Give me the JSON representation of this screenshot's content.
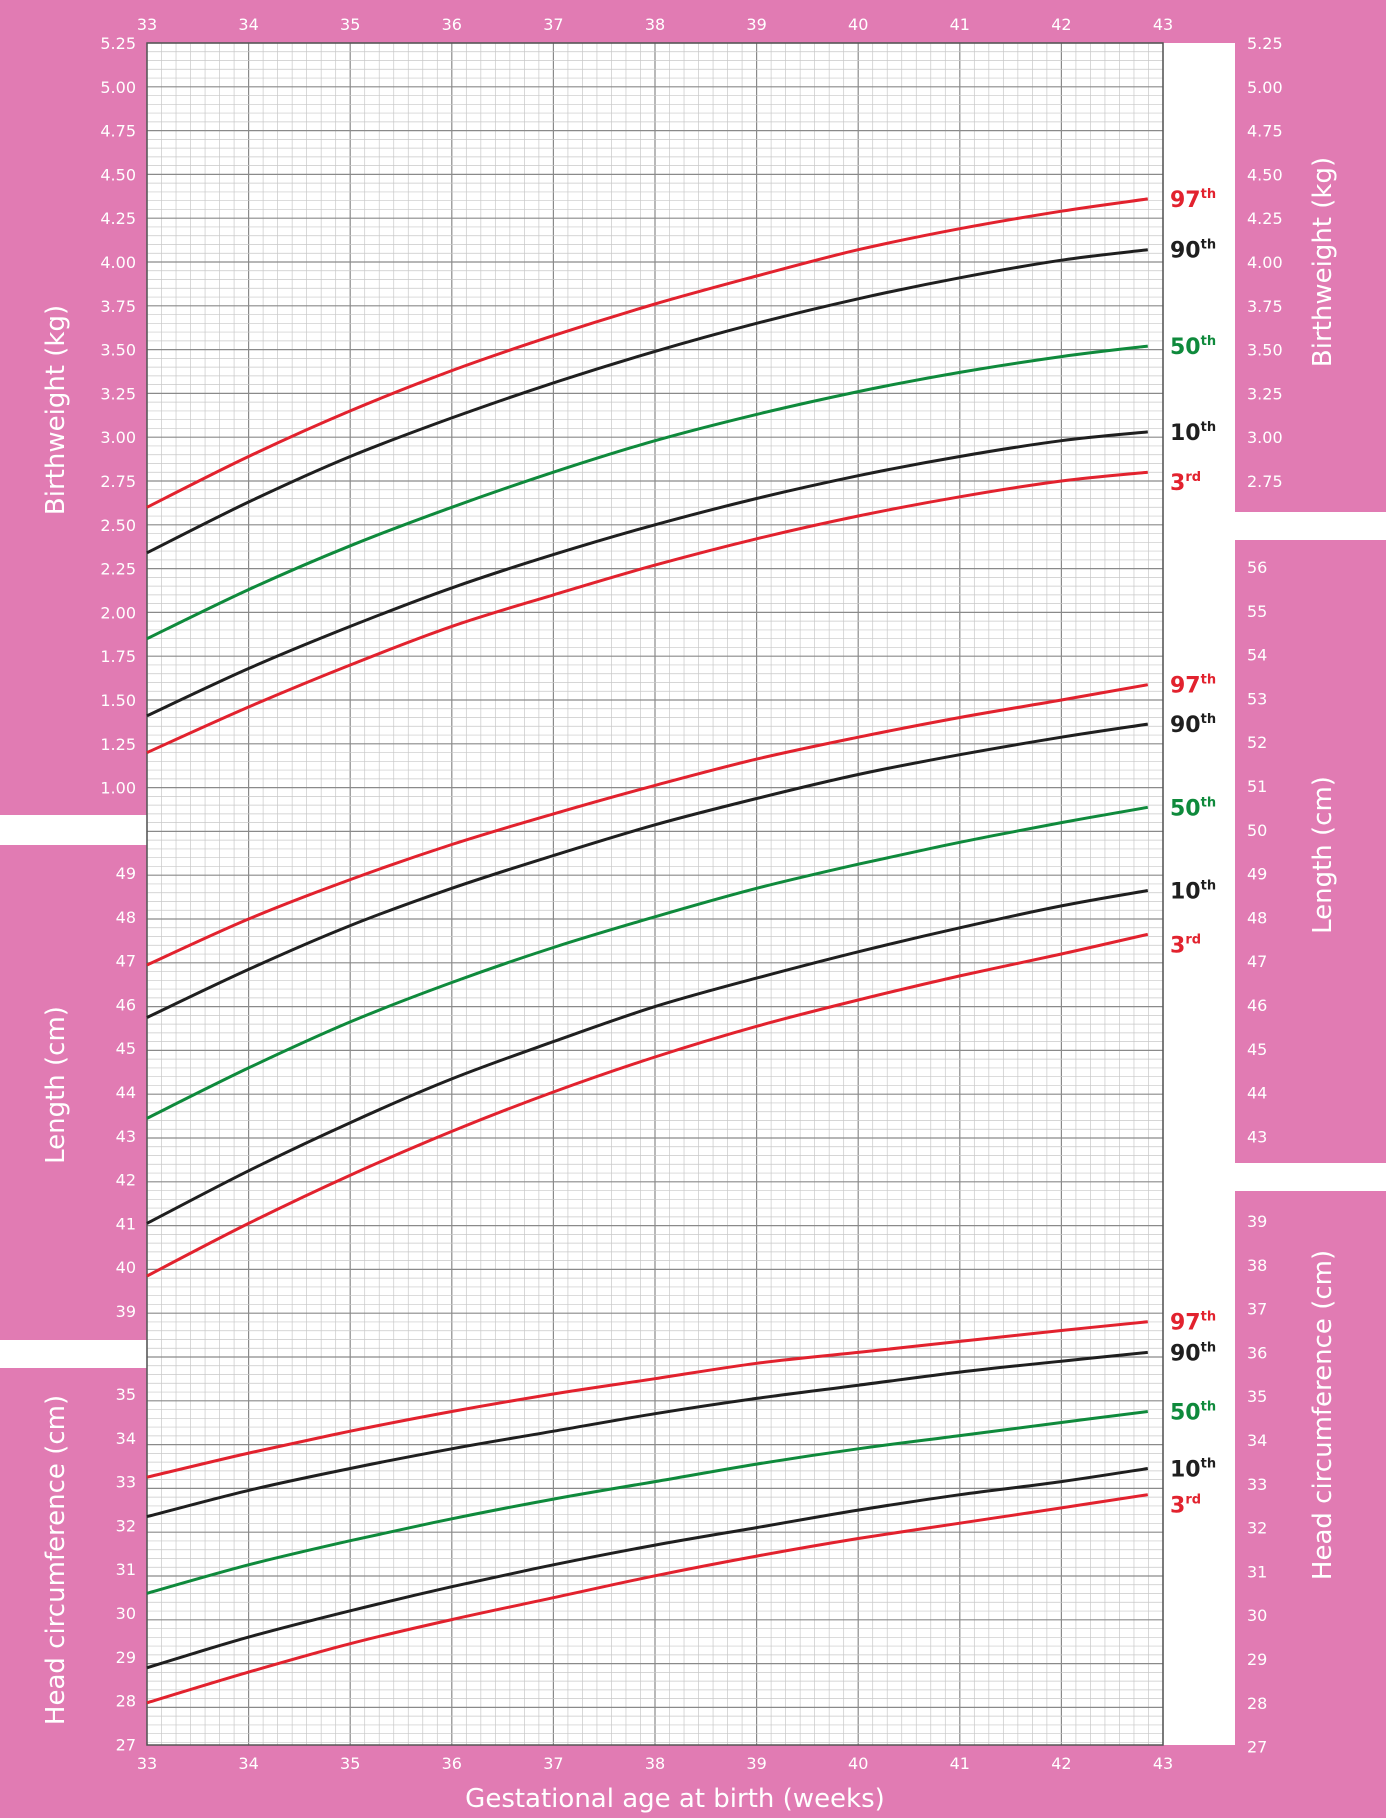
{
  "colors": {
    "background_pink": "#e17bb3",
    "grid_fine": "#c8c8c8",
    "grid_major": "#8a8a8a",
    "p97": "#e2222e",
    "p90": "#1f1f1f",
    "p50": "#0f8a3c",
    "p10": "#1f1f1f",
    "p3": "#e2222e"
  },
  "chart_data": {
    "type": "line",
    "title": "",
    "xlabel": "Gestational age at birth (weeks)",
    "xlim": [
      33,
      43
    ],
    "x_ticks": [
      "33",
      "34",
      "35",
      "36",
      "37",
      "38",
      "39",
      "40",
      "41",
      "42",
      "43"
    ],
    "x": [
      33,
      34,
      35,
      36,
      37,
      38,
      39,
      40,
      41,
      42,
      42.85
    ],
    "percentile_labels": [
      {
        "num": "97",
        "sup": "th"
      },
      {
        "num": "90",
        "sup": "th"
      },
      {
        "num": "50",
        "sup": "th"
      },
      {
        "num": "10",
        "sup": "th"
      },
      {
        "num": "3",
        "sup": "rd"
      }
    ],
    "panels": [
      {
        "ylabel": "Birthweight (kg)",
        "unit": "kg",
        "left_ticks": [
          "5.25",
          "5.00",
          "4.75",
          "4.50",
          "4.25",
          "4.00",
          "3.75",
          "3.50",
          "3.25",
          "3.00",
          "2.75",
          "2.50",
          "2.25",
          "2.00",
          "1.75",
          "1.50",
          "1.25",
          "1.00"
        ],
        "right_ticks": [
          "5.25",
          "5.00",
          "4.75",
          "4.50",
          "4.25",
          "4.00",
          "3.75",
          "3.50",
          "3.25",
          "3.00",
          "2.75"
        ],
        "series": [
          {
            "name": "97th",
            "values": [
              2.6,
              2.89,
              3.15,
              3.38,
              3.58,
              3.76,
              3.92,
              4.07,
              4.19,
              4.29,
              4.36
            ]
          },
          {
            "name": "90th",
            "values": [
              2.34,
              2.63,
              2.89,
              3.11,
              3.31,
              3.49,
              3.65,
              3.79,
              3.91,
              4.01,
              4.07
            ]
          },
          {
            "name": "50th",
            "values": [
              1.85,
              2.13,
              2.38,
              2.6,
              2.8,
              2.98,
              3.13,
              3.26,
              3.37,
              3.46,
              3.52
            ]
          },
          {
            "name": "10th",
            "values": [
              1.41,
              1.68,
              1.92,
              2.14,
              2.33,
              2.5,
              2.65,
              2.78,
              2.89,
              2.98,
              3.03
            ]
          },
          {
            "name": "3rd",
            "values": [
              1.2,
              1.46,
              1.7,
              1.92,
              2.1,
              2.27,
              2.42,
              2.55,
              2.66,
              2.75,
              2.8
            ]
          }
        ]
      },
      {
        "ylabel": "Length (cm)",
        "unit": "cm",
        "left_ticks": [
          "49",
          "48",
          "47",
          "46",
          "45",
          "44",
          "43",
          "42",
          "41",
          "40",
          "39"
        ],
        "right_ticks": [
          "56",
          "55",
          "54",
          "53",
          "52",
          "51",
          "50",
          "49",
          "48",
          "47",
          "46",
          "45",
          "44",
          "43"
        ],
        "series": [
          {
            "name": "97th",
            "values": [
              46.9,
              47.95,
              48.85,
              49.65,
              50.35,
              51.0,
              51.6,
              52.1,
              52.55,
              52.95,
              53.3
            ]
          },
          {
            "name": "90th",
            "values": [
              45.7,
              46.8,
              47.8,
              48.65,
              49.4,
              50.1,
              50.7,
              51.25,
              51.7,
              52.1,
              52.4
            ]
          },
          {
            "name": "50th",
            "values": [
              43.4,
              44.55,
              45.6,
              46.5,
              47.3,
              48.0,
              48.65,
              49.2,
              49.7,
              50.15,
              50.5
            ]
          },
          {
            "name": "10th",
            "values": [
              41.0,
              42.2,
              43.3,
              44.3,
              45.15,
              45.95,
              46.6,
              47.2,
              47.75,
              48.25,
              48.6
            ]
          },
          {
            "name": "3rd",
            "values": [
              39.8,
              41.0,
              42.1,
              43.1,
              44.0,
              44.8,
              45.5,
              46.1,
              46.65,
              47.15,
              47.6
            ]
          }
        ]
      },
      {
        "ylabel": "Head circumference (cm)",
        "unit": "cm",
        "left_ticks": [
          "35",
          "34",
          "33",
          "32",
          "31",
          "30",
          "29",
          "28",
          "27"
        ],
        "right_ticks": [
          "39",
          "38",
          "37",
          "36",
          "35",
          "34",
          "33",
          "32",
          "31",
          "30",
          "29",
          "28",
          "27"
        ],
        "series": [
          {
            "name": "97th",
            "values": [
              33.1,
              33.65,
              34.15,
              34.6,
              35.0,
              35.35,
              35.7,
              35.95,
              36.2,
              36.45,
              36.65
            ]
          },
          {
            "name": "90th",
            "values": [
              32.2,
              32.8,
              33.3,
              33.75,
              34.15,
              34.55,
              34.9,
              35.2,
              35.5,
              35.75,
              35.95
            ]
          },
          {
            "name": "50th",
            "values": [
              30.45,
              31.1,
              31.65,
              32.15,
              32.6,
              33.0,
              33.4,
              33.75,
              34.05,
              34.35,
              34.6
            ]
          },
          {
            "name": "10th",
            "values": [
              28.75,
              29.45,
              30.05,
              30.6,
              31.1,
              31.55,
              31.95,
              32.35,
              32.7,
              33.0,
              33.3
            ]
          },
          {
            "name": "3rd",
            "values": [
              27.95,
              28.65,
              29.3,
              29.85,
              30.35,
              30.85,
              31.3,
              31.7,
              32.05,
              32.4,
              32.7
            ]
          }
        ]
      }
    ]
  }
}
